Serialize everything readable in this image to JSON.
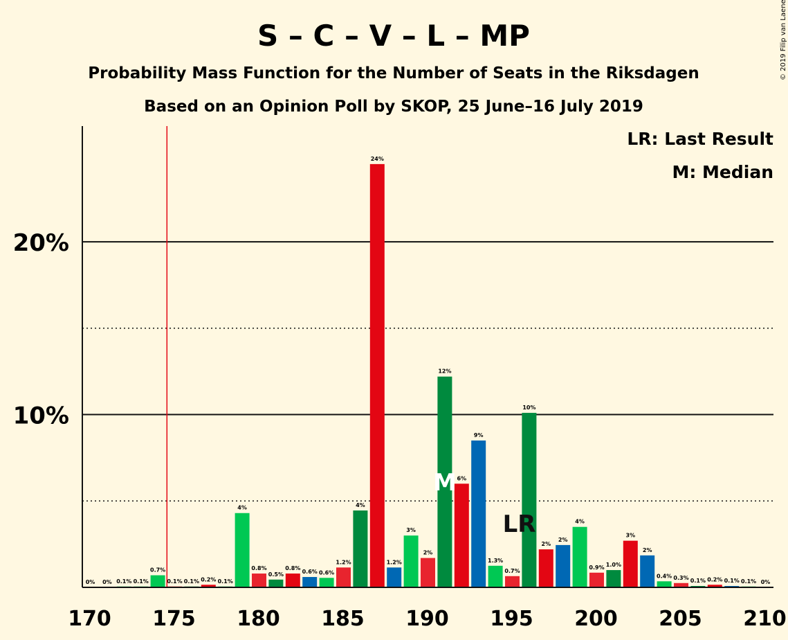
{
  "title": "S – C – V – L – MP",
  "subtitle1": "Probability Mass Function for the Number of Seats in the Riksdagen",
  "subtitle2": "Based on an Opinion Poll by SKOP, 25 June–16 July 2019",
  "legend": {
    "lr": "LR: Last Result",
    "m": "M: Median"
  },
  "copyright": "© 2019 Filip van Laenen",
  "chart_data": {
    "type": "bar",
    "x": [
      170,
      171,
      172,
      173,
      174,
      175,
      176,
      177,
      178,
      179,
      180,
      181,
      182,
      183,
      184,
      185,
      186,
      187,
      188,
      189,
      190,
      191,
      192,
      193,
      194,
      195,
      196,
      197,
      198,
      199,
      200,
      201,
      202,
      203,
      204,
      205,
      206,
      207,
      208,
      209,
      210
    ],
    "values": [
      0,
      0,
      0.05,
      0.05,
      0.7,
      0.05,
      0.05,
      0.15,
      0.05,
      4.3,
      0.8,
      0.45,
      0.8,
      0.6,
      0.55,
      1.15,
      4.45,
      24.5,
      1.15,
      3.0,
      1.7,
      12.2,
      6.0,
      8.5,
      1.25,
      0.65,
      10.1,
      2.2,
      2.45,
      3.5,
      0.85,
      1.0,
      2.7,
      1.85,
      0.35,
      0.25,
      0.08,
      0.15,
      0.08,
      0.05,
      0
    ],
    "labels": [
      "0%",
      "0%",
      "0.1%",
      "0.1%",
      "0.7%",
      "0.1%",
      "0.1%",
      "0.2%",
      "0.1%",
      "4%",
      "0.8%",
      "0.5%",
      "0.8%",
      "0.6%",
      "0.6%",
      "1.2%",
      "4%",
      "24%",
      "1.2%",
      "3%",
      "2%",
      "12%",
      "6%",
      "9%",
      "1.3%",
      "0.7%",
      "10%",
      "2%",
      "2%",
      "4%",
      "0.9%",
      "1.0%",
      "3%",
      "2%",
      "0.4%",
      "0.3%",
      "0.1%",
      "0.2%",
      "0.1%",
      "0.1%",
      "0%"
    ],
    "colors": [
      "#00c853",
      "#00c853",
      "#00c853",
      "#00c853",
      "#00c853",
      "#e30613",
      "#008a3e",
      "#e30613",
      "#00c853",
      "#00c853",
      "#e8242e",
      "#008a3e",
      "#e30613",
      "#0068b4",
      "#00c853",
      "#e8242e",
      "#008a3e",
      "#e30613",
      "#0068b4",
      "#00c853",
      "#e8242e",
      "#008a3e",
      "#e30613",
      "#0068b4",
      "#00c853",
      "#e8242e",
      "#008a3e",
      "#e30613",
      "#0068b4",
      "#00c853",
      "#e8242e",
      "#008a3e",
      "#e30613",
      "#0068b4",
      "#00c853",
      "#e8242e",
      "#008a3e",
      "#e30613",
      "#0068b4",
      "#00c853",
      "#e8242e"
    ],
    "xlim": [
      170,
      210
    ],
    "ylim": [
      0,
      26.7
    ],
    "xticks": [
      170,
      175,
      180,
      185,
      190,
      195,
      200,
      205,
      210
    ],
    "yticks_solid": [
      {
        "value": 10,
        "label": "10%"
      },
      {
        "value": 20,
        "label": "20%"
      }
    ],
    "yticks_dotted": [
      5,
      15
    ],
    "last_result": 175,
    "median": 191,
    "median_label": "M",
    "last_result_label": "LR",
    "last_result_label_at": 195
  }
}
